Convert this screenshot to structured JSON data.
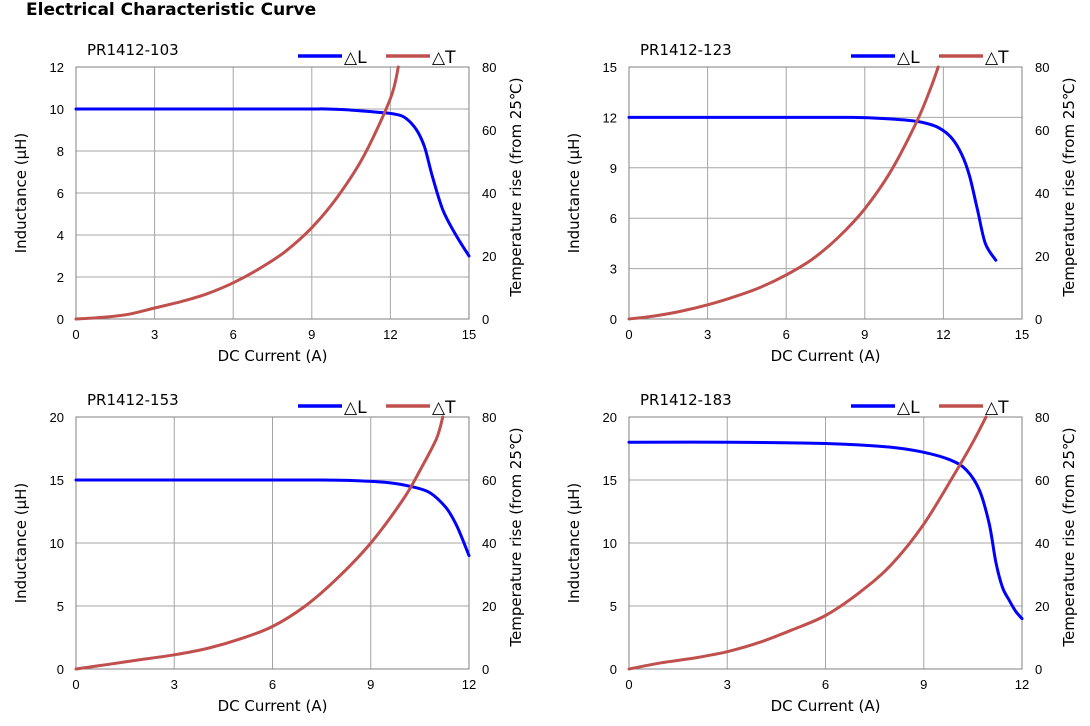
{
  "page": {
    "title": "Electrical Characteristic Curve"
  },
  "chart_data": [
    {
      "type": "line",
      "title": "PR1412-103",
      "xlabel": "DC Current (A)",
      "ylabel": "Inductance (μH)",
      "y2label": "Temperature rise (from 25℃)",
      "xlim": [
        0,
        15
      ],
      "xticks": [
        0,
        3,
        6,
        9,
        12,
        15
      ],
      "ylim": [
        0,
        12
      ],
      "yticks": [
        0,
        2,
        4,
        6,
        8,
        10,
        12
      ],
      "y2lim": [
        0,
        80
      ],
      "y2ticks": [
        0,
        20,
        40,
        60,
        80
      ],
      "grid": true,
      "legend": "top-right",
      "series": [
        {
          "name": "△L",
          "axis": "left",
          "color": "#0000ff",
          "x": [
            0,
            3,
            6,
            9,
            9.5,
            10.5,
            11.5,
            12.2,
            12.6,
            13,
            13.3,
            13.6,
            14,
            14.5,
            15
          ],
          "y": [
            10,
            10,
            10,
            10,
            10,
            9.95,
            9.85,
            9.75,
            9.55,
            9,
            8.2,
            6.8,
            5.2,
            4,
            3
          ]
        },
        {
          "name": "△T",
          "axis": "right",
          "color": "#c0504d",
          "x": [
            0,
            1,
            2,
            3,
            4,
            5,
            6,
            7,
            8,
            9,
            10,
            11,
            12,
            12.3
          ],
          "y": [
            0,
            0.5,
            1.5,
            3.5,
            5.5,
            8,
            11.5,
            16,
            21.5,
            29,
            39,
            52,
            70,
            80
          ]
        }
      ]
    },
    {
      "type": "line",
      "title": "PR1412-123",
      "xlabel": "DC Current (A)",
      "ylabel": "Inductance (μH)",
      "y2label": "Temperature rise (from 25℃)",
      "xlim": [
        0,
        15
      ],
      "xticks": [
        0,
        3,
        6,
        9,
        12,
        15
      ],
      "ylim": [
        0,
        15
      ],
      "yticks": [
        0,
        3,
        6,
        9,
        12,
        15
      ],
      "y2lim": [
        0,
        80
      ],
      "y2ticks": [
        0,
        20,
        40,
        60,
        80
      ],
      "grid": true,
      "legend": "top-right",
      "series": [
        {
          "name": "△L",
          "axis": "left",
          "color": "#0000ff",
          "x": [
            0,
            3,
            6,
            8.5,
            9.5,
            10.5,
            11.2,
            11.8,
            12.3,
            12.7,
            13,
            13.3,
            13.6,
            14
          ],
          "y": [
            12,
            12,
            12,
            12,
            11.95,
            11.85,
            11.7,
            11.4,
            10.8,
            9.8,
            8.5,
            6.5,
            4.5,
            3.5
          ]
        },
        {
          "name": "△T",
          "axis": "right",
          "color": "#c0504d",
          "x": [
            0,
            1,
            2,
            3,
            4,
            5,
            6,
            7,
            8,
            9,
            10,
            11,
            11.5,
            11.8
          ],
          "y": [
            0,
            1,
            2.5,
            4.5,
            7,
            10,
            14,
            19,
            26,
            35,
            47,
            63,
            73,
            80
          ]
        }
      ]
    },
    {
      "type": "line",
      "title": "PR1412-153",
      "xlabel": "DC Current (A)",
      "ylabel": "Inductance (μH)",
      "y2label": "Temperature rise (from 25℃)",
      "xlim": [
        0,
        12
      ],
      "xticks": [
        0,
        3,
        6,
        9,
        12
      ],
      "ylim": [
        0,
        20
      ],
      "yticks": [
        0,
        5,
        10,
        15,
        20
      ],
      "y2lim": [
        0,
        80
      ],
      "y2ticks": [
        0,
        20,
        40,
        60,
        80
      ],
      "grid": true,
      "legend": "top-right",
      "series": [
        {
          "name": "△L",
          "axis": "left",
          "color": "#0000ff",
          "x": [
            0,
            3,
            6,
            7.5,
            8.5,
            9.5,
            10.2,
            10.8,
            11.3,
            11.6,
            11.8,
            12
          ],
          "y": [
            15,
            15,
            15,
            15,
            14.95,
            14.8,
            14.5,
            14,
            12.8,
            11.5,
            10.3,
            9
          ]
        },
        {
          "name": "△T",
          "axis": "right",
          "color": "#c0504d",
          "x": [
            0,
            1,
            2,
            3,
            4,
            5,
            6,
            7,
            8,
            9,
            10,
            10.5,
            11,
            11.2
          ],
          "y": [
            0,
            1.5,
            3,
            4.5,
            6.5,
            9.5,
            13.5,
            20,
            29,
            40,
            54,
            63,
            73,
            80
          ]
        }
      ]
    },
    {
      "type": "line",
      "title": "PR1412-183",
      "xlabel": "DC Current (A)",
      "ylabel": "Inductance (μH)",
      "y2label": "Temperature rise (from 25℃)",
      "xlim": [
        0,
        12
      ],
      "xticks": [
        0,
        3,
        6,
        9,
        12
      ],
      "ylim": [
        0,
        20
      ],
      "yticks": [
        0,
        5,
        10,
        15,
        20
      ],
      "y2lim": [
        0,
        80
      ],
      "y2ticks": [
        0,
        20,
        40,
        60,
        80
      ],
      "grid": true,
      "legend": "top-right",
      "series": [
        {
          "name": "△L",
          "axis": "left",
          "color": "#0000ff",
          "x": [
            0,
            3,
            6,
            8,
            9,
            9.8,
            10.3,
            10.7,
            11,
            11.2,
            11.4,
            11.6,
            11.8,
            12
          ],
          "y": [
            18,
            18,
            17.9,
            17.6,
            17.2,
            16.6,
            15.8,
            14.2,
            11.5,
            8.5,
            6.5,
            5.5,
            4.6,
            4
          ]
        },
        {
          "name": "△T",
          "axis": "right",
          "color": "#c0504d",
          "x": [
            0,
            1,
            2,
            3,
            4,
            5,
            6,
            7,
            8,
            9,
            10,
            10.5,
            10.9
          ],
          "y": [
            0,
            2,
            3.5,
            5.5,
            8.5,
            12.5,
            17,
            24,
            33,
            46,
            63,
            72,
            80
          ]
        }
      ]
    }
  ]
}
